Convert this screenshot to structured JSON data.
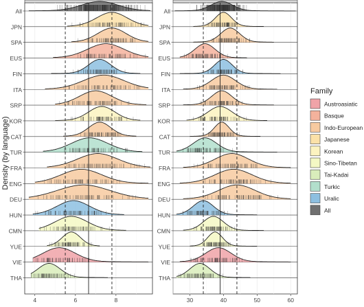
{
  "chart_data": {
    "type": "ridgeline",
    "ylabel": "Density (by language)",
    "languages": [
      "All",
      "JPN",
      "SPA",
      "EUS",
      "FIN",
      "ITA",
      "SRP",
      "KOR",
      "CAT",
      "TUR",
      "FRA",
      "ENG",
      "DEU",
      "HUN",
      "CMN",
      "YUE",
      "VIE",
      "THA"
    ],
    "language_family": {
      "All": "All",
      "JPN": "Japanese",
      "SPA": "Indo-European",
      "EUS": "Basque",
      "FIN": "Uralic",
      "ITA": "Indo-European",
      "SRP": "Indo-European",
      "KOR": "Korean",
      "CAT": "Indo-European",
      "TUR": "Turkic",
      "FRA": "Indo-European",
      "ENG": "Indo-European",
      "DEU": "Indo-European",
      "HUN": "Uralic",
      "CMN": "Sino-Tibetan",
      "YUE": "Sino-Tibetan",
      "VIE": "Austroasiatic",
      "THA": "Tai-Kadai"
    },
    "legend": {
      "title": "Family",
      "position": "right",
      "entries": [
        {
          "name": "Austroasiatic",
          "color": "#f0a3a8"
        },
        {
          "name": "Basque",
          "color": "#f4b29c"
        },
        {
          "name": "Indo-European",
          "color": "#f7caa0"
        },
        {
          "name": "Japanese",
          "color": "#fbe1a8"
        },
        {
          "name": "Korean",
          "color": "#fcf3c0"
        },
        {
          "name": "Sino-Tibetan",
          "color": "#f4f8c4"
        },
        {
          "name": "Tai-Kadai",
          "color": "#d9edbb"
        },
        {
          "name": "Turkic",
          "color": "#b2dfcc"
        },
        {
          "name": "Uralic",
          "color": "#8dbfe0"
        },
        {
          "name": "All",
          "color": "#707070"
        }
      ]
    },
    "panels": [
      {
        "xlim": [
          3.5,
          9.8
        ],
        "xticks": [
          4,
          6,
          8
        ],
        "xtick_labels": [
          "4",
          "6",
          "8"
        ],
        "vlines": [
          {
            "x": 5.5,
            "style": "dashed"
          },
          {
            "x": 6.65,
            "style": "solid"
          },
          {
            "x": 7.8,
            "style": "dashed"
          }
        ],
        "rows": {
          "All": {
            "mean": 7.2,
            "sd": 0.9,
            "lo": 3.7,
            "hi": 9.7
          },
          "JPN": {
            "mean": 7.8,
            "sd": 0.75,
            "lo": 5.6,
            "hi": 9.6
          },
          "SPA": {
            "mean": 7.8,
            "sd": 0.7,
            "lo": 5.8,
            "hi": 9.6
          },
          "EUS": {
            "mean": 7.5,
            "sd": 0.9,
            "lo": 4.9,
            "hi": 9.6
          },
          "FIN": {
            "mean": 7.2,
            "sd": 0.55,
            "lo": 4.8,
            "hi": 9.2
          },
          "ITA": {
            "mean": 7.4,
            "sd": 1.0,
            "lo": 4.5,
            "hi": 9.6
          },
          "SRP": {
            "mean": 7.0,
            "sd": 0.8,
            "lo": 5.0,
            "hi": 9.5
          },
          "KOR": {
            "mean": 7.3,
            "sd": 0.65,
            "lo": 5.0,
            "hi": 9.2
          },
          "CAT": {
            "mean": 7.2,
            "sd": 0.55,
            "lo": 5.4,
            "hi": 9.0
          },
          "TUR": {
            "mean": 6.7,
            "sd": 0.9,
            "lo": 4.4,
            "hi": 9.3
          },
          "FRA": {
            "mean": 7.1,
            "sd": 1.0,
            "lo": 4.6,
            "hi": 9.7
          },
          "ENG": {
            "mean": 6.3,
            "sd": 1.0,
            "lo": 4.0,
            "hi": 9.6
          },
          "DEU": {
            "mean": 6.4,
            "sd": 1.3,
            "lo": 3.7,
            "hi": 9.6
          },
          "HUN": {
            "mean": 5.9,
            "sd": 0.8,
            "lo": 3.9,
            "hi": 8.4
          },
          "CMN": {
            "mean": 5.8,
            "sd": 0.8,
            "lo": 4.2,
            "hi": 8.5
          },
          "YUE": {
            "mean": 5.8,
            "sd": 0.45,
            "lo": 4.6,
            "hi": 7.2
          },
          "VIE": {
            "mean": 5.2,
            "sd": 0.8,
            "lo": 3.9,
            "hi": 9.6
          },
          "THA": {
            "mean": 4.7,
            "sd": 0.55,
            "lo": 3.8,
            "hi": 7.6
          }
        }
      },
      {
        "xlim": [
          25,
          62
        ],
        "xticks": [
          30,
          40,
          50,
          60
        ],
        "xtick_labels": [
          "30",
          "40",
          "50",
          "60"
        ],
        "vlines": [
          {
            "x": 34,
            "style": "dashed"
          },
          {
            "x": 39,
            "style": "solid"
          },
          {
            "x": 44,
            "style": "dashed"
          }
        ],
        "rows": {
          "All": {
            "mean": 39.5,
            "sd": 3.2,
            "lo": 25.5,
            "hi": 61.5
          },
          "JPN": {
            "mean": 40.0,
            "sd": 2.4,
            "lo": 31,
            "hi": 52
          },
          "SPA": {
            "mean": 42.0,
            "sd": 2.8,
            "lo": 31,
            "hi": 55
          },
          "EUS": {
            "mean": 34.5,
            "sd": 3.0,
            "lo": 27,
            "hi": 47
          },
          "FIN": {
            "mean": 40.0,
            "sd": 2.6,
            "lo": 27,
            "hi": 57
          },
          "ITA": {
            "mean": 40.0,
            "sd": 3.6,
            "lo": 28,
            "hi": 56
          },
          "SRP": {
            "mean": 39.5,
            "sd": 3.0,
            "lo": 28,
            "hi": 55
          },
          "KOR": {
            "mean": 39.0,
            "sd": 3.6,
            "lo": 29,
            "hi": 53
          },
          "CAT": {
            "mean": 39.5,
            "sd": 2.2,
            "lo": 30,
            "hi": 51
          },
          "TUR": {
            "mean": 34.5,
            "sd": 3.5,
            "lo": 26,
            "hi": 56
          },
          "FRA": {
            "mean": 42.5,
            "sd": 5.0,
            "lo": 28,
            "hi": 60
          },
          "ENG": {
            "mean": 43.0,
            "sd": 5.5,
            "lo": 27,
            "hi": 60
          },
          "DEU": {
            "mean": 44.0,
            "sd": 5.5,
            "lo": 28,
            "hi": 60
          },
          "HUN": {
            "mean": 34.0,
            "sd": 3.0,
            "lo": 26,
            "hi": 50
          },
          "CMN": {
            "mean": 37.0,
            "sd": 3.0,
            "lo": 28,
            "hi": 52
          },
          "YUE": {
            "mean": 37.5,
            "sd": 2.2,
            "lo": 30,
            "hi": 50
          },
          "VIE": {
            "mean": 38.5,
            "sd": 3.8,
            "lo": 27,
            "hi": 60
          },
          "THA": {
            "mean": 33.0,
            "sd": 3.0,
            "lo": 26,
            "hi": 48
          }
        }
      }
    ]
  }
}
